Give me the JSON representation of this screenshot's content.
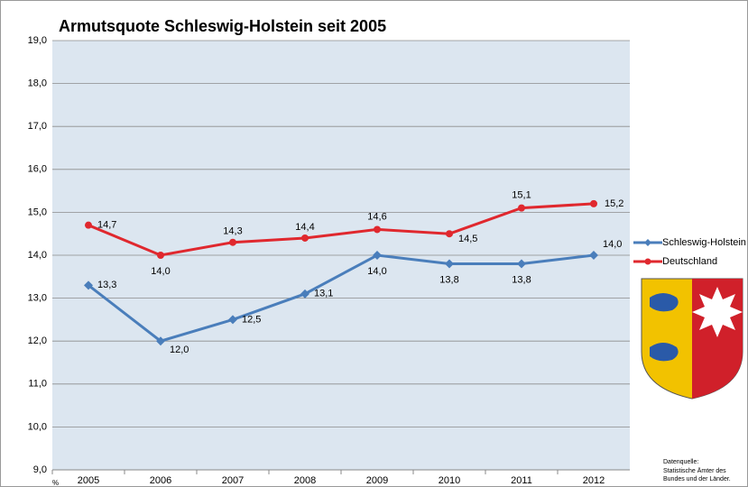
{
  "chart_data": {
    "type": "line",
    "title": "Armutsquote Schleswig-Holstein seit 2005",
    "y_label": "%",
    "source": [
      "Datenquelle:",
      "Statistische Ämter des",
      "Bundes und der Länder."
    ],
    "categories": [
      "2005",
      "2006",
      "2007",
      "2008",
      "2009",
      "2010",
      "2011",
      "2012"
    ],
    "series": [
      {
        "name": "Schleswig-Holstein",
        "color": "#4a7ebb",
        "marker": "diamond",
        "values": [
          13.3,
          12.0,
          12.5,
          13.1,
          14.0,
          13.8,
          13.8,
          14.0
        ],
        "value_labels": [
          "13,3",
          "12,0",
          "12,5",
          "13,1",
          "14,0",
          "13,8",
          "13,8",
          "14,0"
        ]
      },
      {
        "name": "Deutschland",
        "color": "#e0282e",
        "marker": "circle",
        "values": [
          14.7,
          14.0,
          14.3,
          14.4,
          14.6,
          14.5,
          15.1,
          15.2
        ],
        "value_labels": [
          "14,7",
          "14,0",
          "14,3",
          "14,4",
          "14,6",
          "14,5",
          "15,1",
          "15,2"
        ]
      }
    ],
    "ylim": [
      9,
      19
    ],
    "yticks": [
      {
        "value": 9,
        "label": "9,0"
      },
      {
        "value": 10,
        "label": "10,0"
      },
      {
        "value": 11,
        "label": "11,0"
      },
      {
        "value": 12,
        "label": "12,0"
      },
      {
        "value": 13,
        "label": "13,0"
      },
      {
        "value": 14,
        "label": "14,0"
      },
      {
        "value": 15,
        "label": "15,0"
      },
      {
        "value": 16,
        "label": "16,0"
      },
      {
        "value": 17,
        "label": "17,0"
      },
      {
        "value": 18,
        "label": "18,0"
      },
      {
        "value": 19,
        "label": "19,0"
      }
    ],
    "grid": true,
    "legend": "right"
  }
}
